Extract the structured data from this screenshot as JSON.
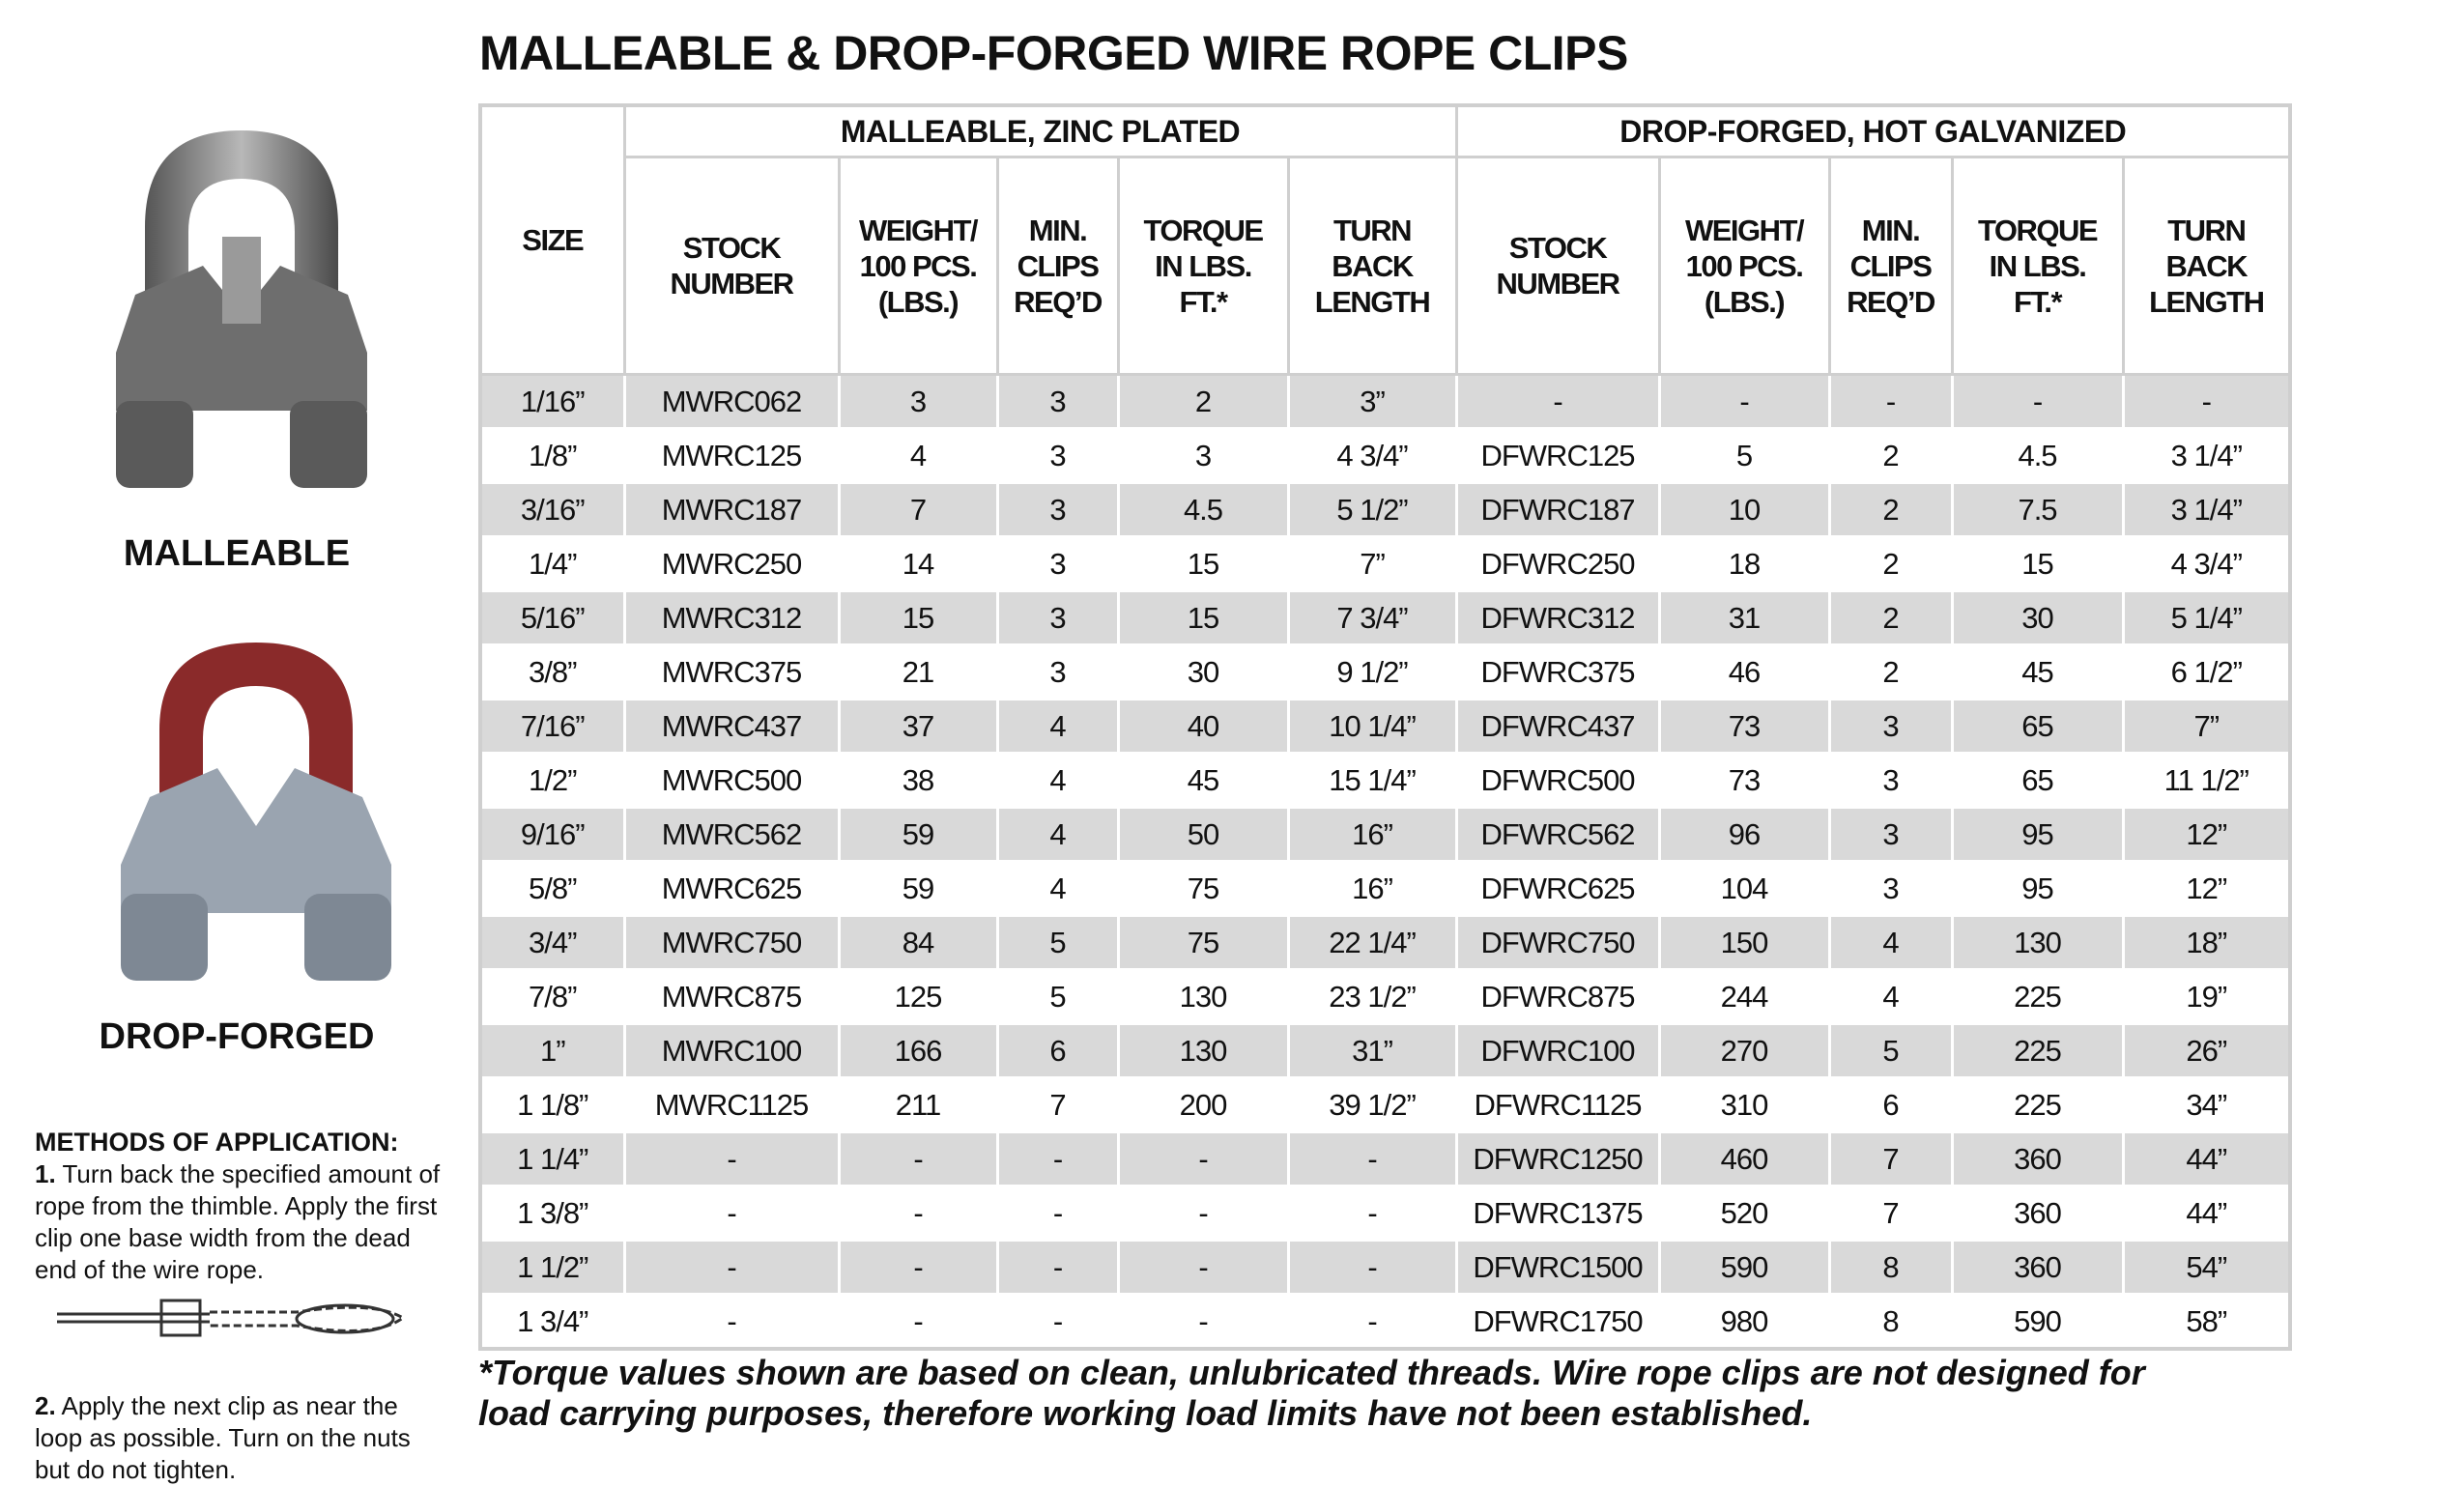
{
  "title": "MALLEABLE & DROP-FORGED WIRE ROPE CLIPS",
  "products": [
    {
      "label": "MALLEABLE"
    },
    {
      "label": "DROP-FORGED"
    }
  ],
  "methods": {
    "heading": "METHODS OF APPLICATION:",
    "steps": [
      {
        "number": "1.",
        "text": "Turn back the specified amount of rope from the thimble. Apply the first clip one base width from the dead end of the wire rope."
      },
      {
        "number": "2.",
        "text": "Apply the next clip as near the loop as possible. Turn on the nuts but do not tighten."
      }
    ]
  },
  "table": {
    "size_header": "SIZE",
    "groups": [
      "MALLEABLE, ZINC PLATED",
      "DROP-FORGED, HOT GALVANIZED"
    ],
    "columns": [
      [
        "STOCK",
        "NUMBER"
      ],
      [
        "WEIGHT/",
        "100 PCS.",
        "(LBS.)"
      ],
      [
        "MIN.",
        "CLIPS",
        "REQ’D"
      ],
      [
        "TORQUE",
        "IN LBS.",
        "FT.*"
      ],
      [
        "TURN",
        "BACK",
        "LENGTH"
      ],
      [
        "STOCK",
        "NUMBER"
      ],
      [
        "WEIGHT/",
        "100 PCS.",
        "(LBS.)"
      ],
      [
        "MIN.",
        "CLIPS",
        "REQ’D"
      ],
      [
        "TORQUE",
        "IN LBS.",
        "FT.*"
      ],
      [
        "TURN",
        "BACK",
        "LENGTH"
      ]
    ],
    "rows": [
      [
        "1/16”",
        "MWRC062",
        "3",
        "3",
        "2",
        "3”",
        "-",
        "-",
        "-",
        "-",
        "-"
      ],
      [
        "1/8”",
        "MWRC125",
        "4",
        "3",
        "3",
        "4 3/4”",
        "DFWRC125",
        "5",
        "2",
        "4.5",
        "3 1/4”"
      ],
      [
        "3/16”",
        "MWRC187",
        "7",
        "3",
        "4.5",
        "5 1/2”",
        "DFWRC187",
        "10",
        "2",
        "7.5",
        "3 1/4”"
      ],
      [
        "1/4”",
        "MWRC250",
        "14",
        "3",
        "15",
        "7”",
        "DFWRC250",
        "18",
        "2",
        "15",
        "4 3/4”"
      ],
      [
        "5/16”",
        "MWRC312",
        "15",
        "3",
        "15",
        "7 3/4”",
        "DFWRC312",
        "31",
        "2",
        "30",
        "5 1/4”"
      ],
      [
        "3/8”",
        "MWRC375",
        "21",
        "3",
        "30",
        "9 1/2”",
        "DFWRC375",
        "46",
        "2",
        "45",
        "6 1/2”"
      ],
      [
        "7/16”",
        "MWRC437",
        "37",
        "4",
        "40",
        "10 1/4”",
        "DFWRC437",
        "73",
        "3",
        "65",
        "7”"
      ],
      [
        "1/2”",
        "MWRC500",
        "38",
        "4",
        "45",
        "15 1/4”",
        "DFWRC500",
        "73",
        "3",
        "65",
        "11 1/2”"
      ],
      [
        "9/16”",
        "MWRC562",
        "59",
        "4",
        "50",
        "16”",
        "DFWRC562",
        "96",
        "3",
        "95",
        "12”"
      ],
      [
        "5/8”",
        "MWRC625",
        "59",
        "4",
        "75",
        "16”",
        "DFWRC625",
        "104",
        "3",
        "95",
        "12”"
      ],
      [
        "3/4”",
        "MWRC750",
        "84",
        "5",
        "75",
        "22 1/4”",
        "DFWRC750",
        "150",
        "4",
        "130",
        "18”"
      ],
      [
        "7/8”",
        "MWRC875",
        "125",
        "5",
        "130",
        "23 1/2”",
        "DFWRC875",
        "244",
        "4",
        "225",
        "19”"
      ],
      [
        "1”",
        "MWRC100",
        "166",
        "6",
        "130",
        "31”",
        "DFWRC100",
        "270",
        "5",
        "225",
        "26”"
      ],
      [
        "1 1/8”",
        "MWRC1125",
        "211",
        "7",
        "200",
        "39 1/2”",
        "DFWRC1125",
        "310",
        "6",
        "225",
        "34”"
      ],
      [
        "1 1/4”",
        "-",
        "-",
        "-",
        "-",
        "-",
        "DFWRC1250",
        "460",
        "7",
        "360",
        "44”"
      ],
      [
        "1 3/8”",
        "-",
        "-",
        "-",
        "-",
        "-",
        "DFWRC1375",
        "520",
        "7",
        "360",
        "44”"
      ],
      [
        "1 1/2”",
        "-",
        "-",
        "-",
        "-",
        "-",
        "DFWRC1500",
        "590",
        "8",
        "360",
        "54”"
      ],
      [
        "1 3/4”",
        "-",
        "-",
        "-",
        "-",
        "-",
        "DFWRC1750",
        "980",
        "8",
        "590",
        "58”"
      ]
    ]
  },
  "footnote": "*Torque values shown are based on clean, unlubricated threads. Wire rope clips are not designed for load carrying purposes, therefore working load limits have not been established."
}
